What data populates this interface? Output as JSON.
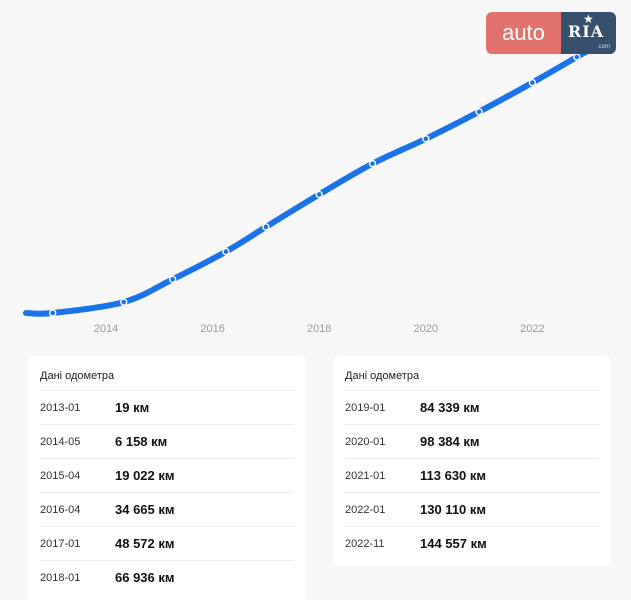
{
  "logo": {
    "left": "auto",
    "right": "RIA",
    "suffix": ".com"
  },
  "chart_data": {
    "type": "line",
    "x": [
      "2013-01",
      "2014-05",
      "2015-04",
      "2016-04",
      "2017-01",
      "2018-01",
      "2019-01",
      "2020-01",
      "2021-01",
      "2022-01",
      "2022-11"
    ],
    "series": [
      {
        "values": [
          19,
          6158,
          19022,
          34665,
          48572,
          66936,
          84339,
          98384,
          113630,
          130110,
          144557
        ]
      }
    ],
    "xticks": [
      "2014",
      "2016",
      "2018",
      "2020",
      "2022"
    ],
    "grid": false,
    "line_color": "#1a73e8"
  },
  "tables": [
    {
      "title": "Дані одометра",
      "rows": [
        {
          "date": "2013-01",
          "km": "19 км"
        },
        {
          "date": "2014-05",
          "km": "6 158 км"
        },
        {
          "date": "2015-04",
          "km": "19 022 км"
        },
        {
          "date": "2016-04",
          "km": "34 665 км"
        },
        {
          "date": "2017-01",
          "km": "48 572 км"
        },
        {
          "date": "2018-01",
          "km": "66 936 км"
        }
      ]
    },
    {
      "title": "Дані одометра",
      "rows": [
        {
          "date": "2019-01",
          "km": "84 339 км"
        },
        {
          "date": "2020-01",
          "km": "98 384 км"
        },
        {
          "date": "2021-01",
          "km": "113 630 км"
        },
        {
          "date": "2022-01",
          "km": "130 110 км"
        },
        {
          "date": "2022-11",
          "km": "144 557 км"
        }
      ]
    }
  ]
}
